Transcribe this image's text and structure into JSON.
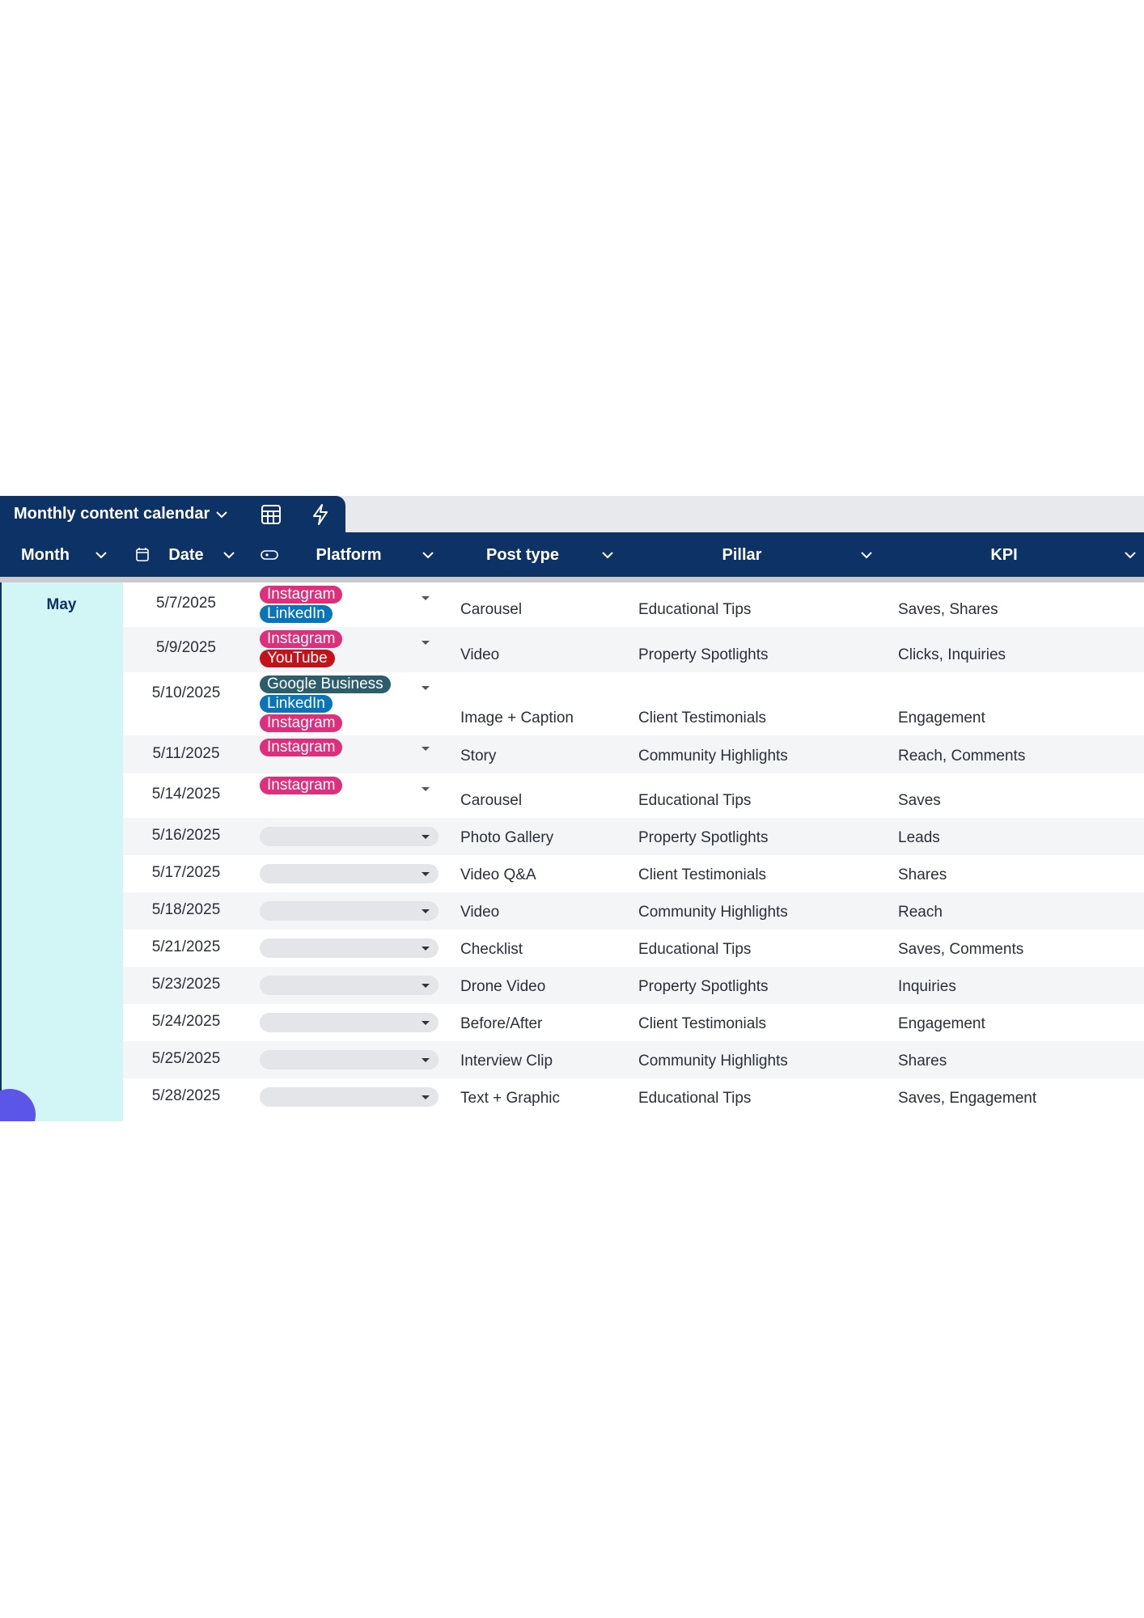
{
  "view": {
    "title": "Monthly content calendar"
  },
  "table": {
    "columns": [
      "Month",
      "Date",
      "Platform",
      "Post type",
      "Pillar",
      "KPI"
    ],
    "month": "May",
    "rows": [
      {
        "date": "5/7/2025",
        "platforms": [
          {
            "name": "Instagram",
            "color": "#dd2f7c"
          },
          {
            "name": "LinkedIn",
            "color": "#0a74b9"
          }
        ],
        "post_type": "Carousel",
        "pillar": "Educational Tips",
        "kpi": "Saves, Shares"
      },
      {
        "date": "5/9/2025",
        "platforms": [
          {
            "name": "Instagram",
            "color": "#dd2f7c"
          },
          {
            "name": "YouTube",
            "color": "#c3121a"
          }
        ],
        "post_type": "Video",
        "pillar": "Property Spotlights",
        "kpi": "Clicks, Inquiries"
      },
      {
        "date": "5/10/2025",
        "platforms": [
          {
            "name": "Google Business",
            "color": "#2c5d6b"
          },
          {
            "name": "LinkedIn",
            "color": "#0a74b9"
          },
          {
            "name": "Instagram",
            "color": "#dd2f7c"
          }
        ],
        "post_type": "Image + Caption",
        "pillar": "Client Testimonials",
        "kpi": "Engagement"
      },
      {
        "date": "5/11/2025",
        "platforms": [
          {
            "name": "Instagram",
            "color": "#dd2f7c"
          }
        ],
        "post_type": "Story",
        "pillar": "Community Highlights",
        "kpi": "Reach, Comments"
      },
      {
        "date": "5/14/2025",
        "platforms": [
          {
            "name": "Instagram",
            "color": "#dd2f7c"
          }
        ],
        "post_type": "Carousel",
        "pillar": "Educational Tips",
        "kpi": "Saves"
      },
      {
        "date": "5/16/2025",
        "platforms": [],
        "post_type": "Photo Gallery",
        "pillar": "Property Spotlights",
        "kpi": "Leads"
      },
      {
        "date": "5/17/2025",
        "platforms": [],
        "post_type": "Video Q&A",
        "pillar": "Client Testimonials",
        "kpi": "Shares"
      },
      {
        "date": "5/18/2025",
        "platforms": [],
        "post_type": "Video",
        "pillar": "Community Highlights",
        "kpi": "Reach"
      },
      {
        "date": "5/21/2025",
        "platforms": [],
        "post_type": "Checklist",
        "pillar": "Educational Tips",
        "kpi": "Saves, Comments"
      },
      {
        "date": "5/23/2025",
        "platforms": [],
        "post_type": "Drone Video",
        "pillar": "Property Spotlights",
        "kpi": "Inquiries"
      },
      {
        "date": "5/24/2025",
        "platforms": [],
        "post_type": "Before/After",
        "pillar": "Client Testimonials",
        "kpi": "Engagement"
      },
      {
        "date": "5/25/2025",
        "platforms": [],
        "post_type": "Interview Clip",
        "pillar": "Community Highlights",
        "kpi": "Shares"
      },
      {
        "date": "5/28/2025",
        "platforms": [],
        "post_type": "Text + Graphic",
        "pillar": "Educational Tips",
        "kpi": "Saves, Engagement"
      }
    ]
  }
}
